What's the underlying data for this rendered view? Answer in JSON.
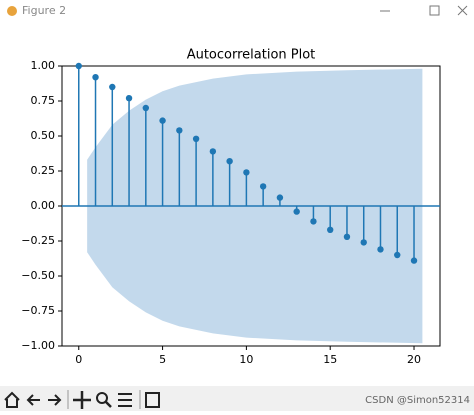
{
  "window_title": "Figure 2",
  "watermark": "CSDN @Simon52314",
  "chart_data": {
    "type": "stem",
    "title": "Autocorrelation Plot",
    "x": [
      0,
      1,
      2,
      3,
      4,
      5,
      6,
      7,
      8,
      9,
      10,
      11,
      12,
      13,
      14,
      15,
      16,
      17,
      18,
      19,
      20
    ],
    "values": [
      1.0,
      0.92,
      0.85,
      0.77,
      0.7,
      0.61,
      0.54,
      0.48,
      0.39,
      0.32,
      0.24,
      0.14,
      0.06,
      -0.04,
      -0.11,
      -0.17,
      -0.22,
      -0.26,
      -0.31,
      -0.35,
      -0.39
    ],
    "color": "#1f77b4",
    "confint": {
      "x": [
        0.5,
        1,
        2,
        3,
        4,
        5,
        6,
        8,
        10,
        13,
        16,
        20.5
      ],
      "upper": [
        0.33,
        0.42,
        0.58,
        0.68,
        0.76,
        0.82,
        0.86,
        0.91,
        0.94,
        0.96,
        0.97,
        0.98
      ],
      "lower": [
        -0.33,
        -0.42,
        -0.58,
        -0.68,
        -0.76,
        -0.82,
        -0.86,
        -0.91,
        -0.94,
        -0.96,
        -0.97,
        -0.98
      ],
      "color": "#c3d9ec"
    },
    "xlim": [
      -1,
      21.55
    ],
    "xticks": [
      0,
      5,
      10,
      15,
      20
    ],
    "ylim": [
      -1,
      1
    ],
    "yticks": [
      {
        "value": -1,
        "label": "−1.00"
      },
      {
        "value": -0.75,
        "label": "−0.75"
      },
      {
        "value": -0.5,
        "label": "−0.50"
      },
      {
        "value": -0.25,
        "label": "−0.25"
      },
      {
        "value": 0,
        "label": "0.00"
      },
      {
        "value": 0.25,
        "label": "0.25"
      },
      {
        "value": 0.5,
        "label": "0.50"
      },
      {
        "value": 0.75,
        "label": "0.75"
      },
      {
        "value": 1,
        "label": "1.00"
      }
    ]
  }
}
